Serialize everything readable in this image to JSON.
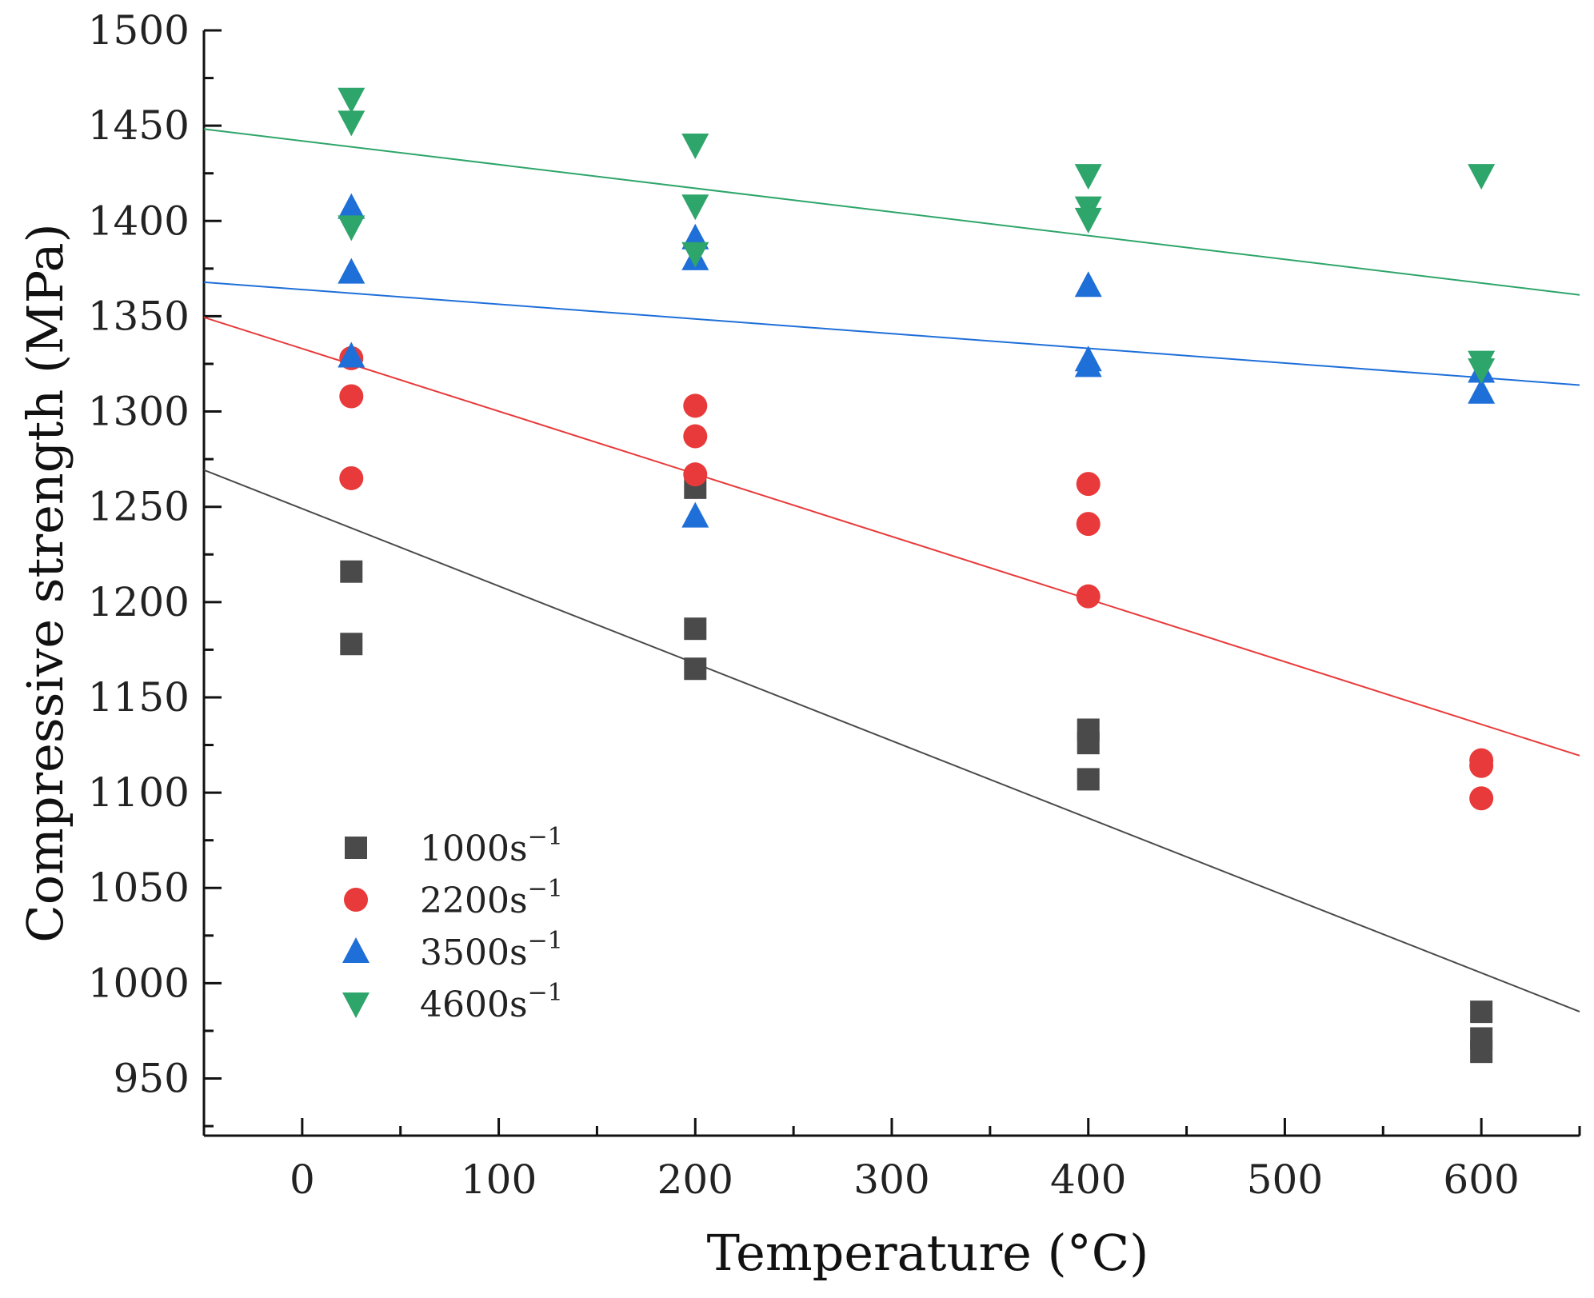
{
  "chart_data": {
    "type": "scatter",
    "title": "",
    "xlabel": "Temperature (°C)",
    "ylabel": "Compressive strength (MPa)",
    "xlim": [
      -50,
      650
    ],
    "ylim": [
      920,
      1500
    ],
    "xticks": [
      0,
      100,
      200,
      300,
      400,
      500,
      600
    ],
    "yticks": [
      950,
      1000,
      1050,
      1100,
      1150,
      1200,
      1250,
      1300,
      1350,
      1400,
      1450,
      1500
    ],
    "grid": false,
    "legend_position": "bottom-left",
    "series": [
      {
        "name": "1000s",
        "superscript": "−1",
        "marker": "square",
        "color": "#4a4a4a",
        "points": [
          [
            25,
            1216
          ],
          [
            25,
            1178
          ],
          [
            200,
            1260
          ],
          [
            200,
            1186
          ],
          [
            200,
            1165
          ],
          [
            400,
            1133
          ],
          [
            400,
            1126
          ],
          [
            400,
            1107
          ],
          [
            600,
            985
          ],
          [
            600,
            971
          ],
          [
            600,
            964
          ]
        ],
        "fit": {
          "slope": -0.406,
          "intercept": 1249
        }
      },
      {
        "name": "2200s",
        "superscript": "−1",
        "marker": "circle",
        "color": "#e83a3a",
        "points": [
          [
            25,
            1328
          ],
          [
            25,
            1308
          ],
          [
            25,
            1265
          ],
          [
            200,
            1303
          ],
          [
            200,
            1287
          ],
          [
            200,
            1267
          ],
          [
            400,
            1262
          ],
          [
            400,
            1241
          ],
          [
            400,
            1203
          ],
          [
            600,
            1117
          ],
          [
            600,
            1114
          ],
          [
            600,
            1097
          ]
        ],
        "fit": {
          "slope": -0.3286,
          "intercept": 1333
        }
      },
      {
        "name": "3500s",
        "superscript": "−1",
        "marker": "triangle-up",
        "color": "#1f6fd9",
        "points": [
          [
            25,
            1407
          ],
          [
            25,
            1373
          ],
          [
            25,
            1329
          ],
          [
            200,
            1391
          ],
          [
            200,
            1380
          ],
          [
            200,
            1245
          ],
          [
            400,
            1366
          ],
          [
            400,
            1327
          ],
          [
            400,
            1324
          ],
          [
            600,
            1321
          ],
          [
            600,
            1310
          ]
        ],
        "fit": {
          "slope": -0.0771,
          "intercept": 1364
        }
      },
      {
        "name": "4600s",
        "superscript": "−1",
        "marker": "triangle-down",
        "color": "#2ea56a",
        "points": [
          [
            25,
            1464
          ],
          [
            25,
            1452
          ],
          [
            25,
            1397
          ],
          [
            200,
            1440
          ],
          [
            200,
            1408
          ],
          [
            200,
            1383
          ],
          [
            400,
            1424
          ],
          [
            400,
            1407
          ],
          [
            400,
            1401
          ],
          [
            600,
            1424
          ],
          [
            600,
            1326
          ],
          [
            600,
            1322
          ]
        ],
        "fit": {
          "slope": -0.1243,
          "intercept": 1442
        }
      }
    ]
  }
}
